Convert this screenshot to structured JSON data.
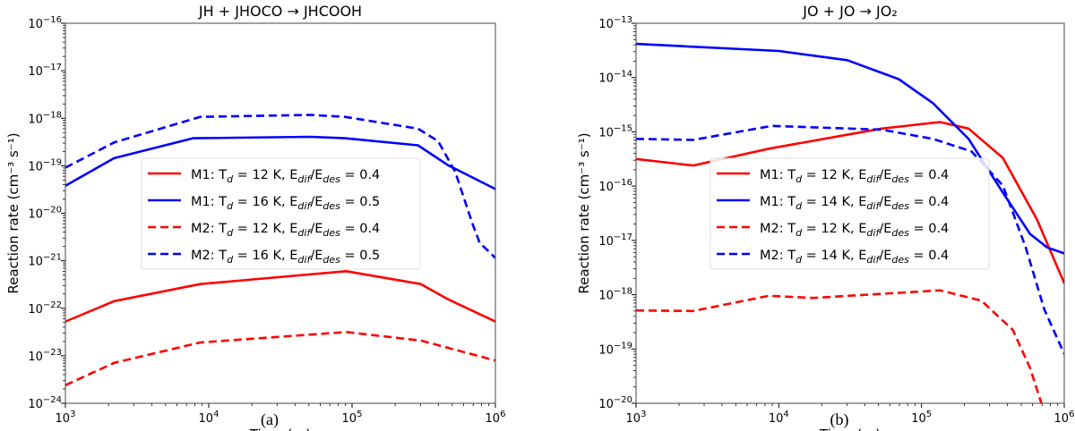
{
  "colors": {
    "red": "#ff0000",
    "blue": "#0000ff",
    "axis": "#333333"
  },
  "chart_data": [
    {
      "type": "line",
      "title": "JH + JHOCO → JHCOOH",
      "caption": "(a)",
      "xlabel": "Time (yr)",
      "ylabel": "Reaction rate (cm⁻³ s⁻¹)",
      "xscale": "log",
      "yscale": "log",
      "xlim_log10": [
        3,
        6
      ],
      "ylim_log10": [
        -24,
        -16
      ],
      "legend_placement": "center",
      "series": [
        {
          "model": "M1",
          "Td": "12",
          "ratio": "0.4",
          "color": "#ff0000",
          "style": "solid",
          "x_log10": [
            3,
            3.34,
            3.94,
            4.96,
            5.48,
            5.67,
            6
          ],
          "y_log10": [
            -22.28,
            -21.85,
            -21.49,
            -21.22,
            -21.49,
            -21.81,
            -22.28
          ]
        },
        {
          "model": "M1",
          "Td": "16",
          "ratio": "0.5",
          "color": "#0000ff",
          "style": "solid",
          "x_log10": [
            3,
            3.34,
            3.89,
            4.71,
            4.95,
            5.46,
            5.67,
            6
          ],
          "y_log10": [
            -19.42,
            -18.84,
            -18.42,
            -18.39,
            -18.42,
            -18.57,
            -18.99,
            -19.49
          ]
        },
        {
          "model": "M2",
          "Td": "12",
          "ratio": "0.4",
          "color": "#ff0000",
          "style": "dashed",
          "x_log10": [
            3,
            3.34,
            3.94,
            4.96,
            5.48,
            6
          ],
          "y_log10": [
            -23.62,
            -23.15,
            -22.72,
            -22.5,
            -22.68,
            -23.1
          ]
        },
        {
          "model": "M2",
          "Td": "16",
          "ratio": "0.5",
          "color": "#0000ff",
          "style": "dashed",
          "x_log10": [
            3,
            3.34,
            3.94,
            4.71,
            4.95,
            5.46,
            5.6,
            5.72,
            5.84,
            5.89,
            6
          ],
          "y_log10": [
            -19.04,
            -18.51,
            -17.97,
            -17.93,
            -17.97,
            -18.22,
            -18.48,
            -19.13,
            -20.22,
            -20.62,
            -20.94
          ]
        }
      ]
    },
    {
      "type": "line",
      "title": "JO + JO → JO₂",
      "caption": "(b)",
      "xlabel": "Time (yr)",
      "ylabel": "Reaction rate (cm⁻³ s⁻¹)",
      "xscale": "log",
      "yscale": "log",
      "xlim_log10": [
        3,
        6
      ],
      "ylim_log10": [
        -20,
        -13
      ],
      "legend_placement": "center-right",
      "series": [
        {
          "model": "M1",
          "Td": "12",
          "ratio": "0.4",
          "color": "#ff0000",
          "style": "solid",
          "x_log10": [
            3,
            3.4,
            3.93,
            4.72,
            5.13,
            5.33,
            5.57,
            5.81,
            6
          ],
          "y_log10": [
            -15.5,
            -15.62,
            -15.31,
            -14.94,
            -14.82,
            -14.94,
            -15.48,
            -16.62,
            -17.79
          ]
        },
        {
          "model": "M1",
          "Td": "14",
          "ratio": "0.4",
          "color": "#0000ff",
          "style": "solid",
          "x_log10": [
            3,
            4.0,
            4.48,
            4.84,
            5.08,
            5.33,
            5.57,
            5.76,
            5.88,
            6
          ],
          "y_log10": [
            -13.38,
            -13.51,
            -13.68,
            -14.03,
            -14.47,
            -15.13,
            -16.12,
            -16.88,
            -17.13,
            -17.24
          ]
        },
        {
          "model": "M2",
          "Td": "12",
          "ratio": "0.4",
          "color": "#ff0000",
          "style": "dashed",
          "x_log10": [
            3,
            3.4,
            3.93,
            4.24,
            5.13,
            5.42,
            5.64,
            5.76,
            5.84
          ],
          "y_log10": [
            -18.29,
            -18.3,
            -18.02,
            -18.06,
            -17.92,
            -18.11,
            -18.65,
            -19.35,
            -20.0
          ]
        },
        {
          "model": "M2",
          "Td": "14",
          "ratio": "0.4",
          "color": "#0000ff",
          "style": "dashed",
          "x_log10": [
            3,
            3.4,
            3.95,
            4.72,
            5.08,
            5.35,
            5.57,
            5.73,
            5.86,
            6
          ],
          "y_log10": [
            -15.13,
            -15.15,
            -14.89,
            -14.96,
            -15.13,
            -15.36,
            -15.99,
            -17.13,
            -18.27,
            -19.09
          ]
        }
      ]
    }
  ]
}
